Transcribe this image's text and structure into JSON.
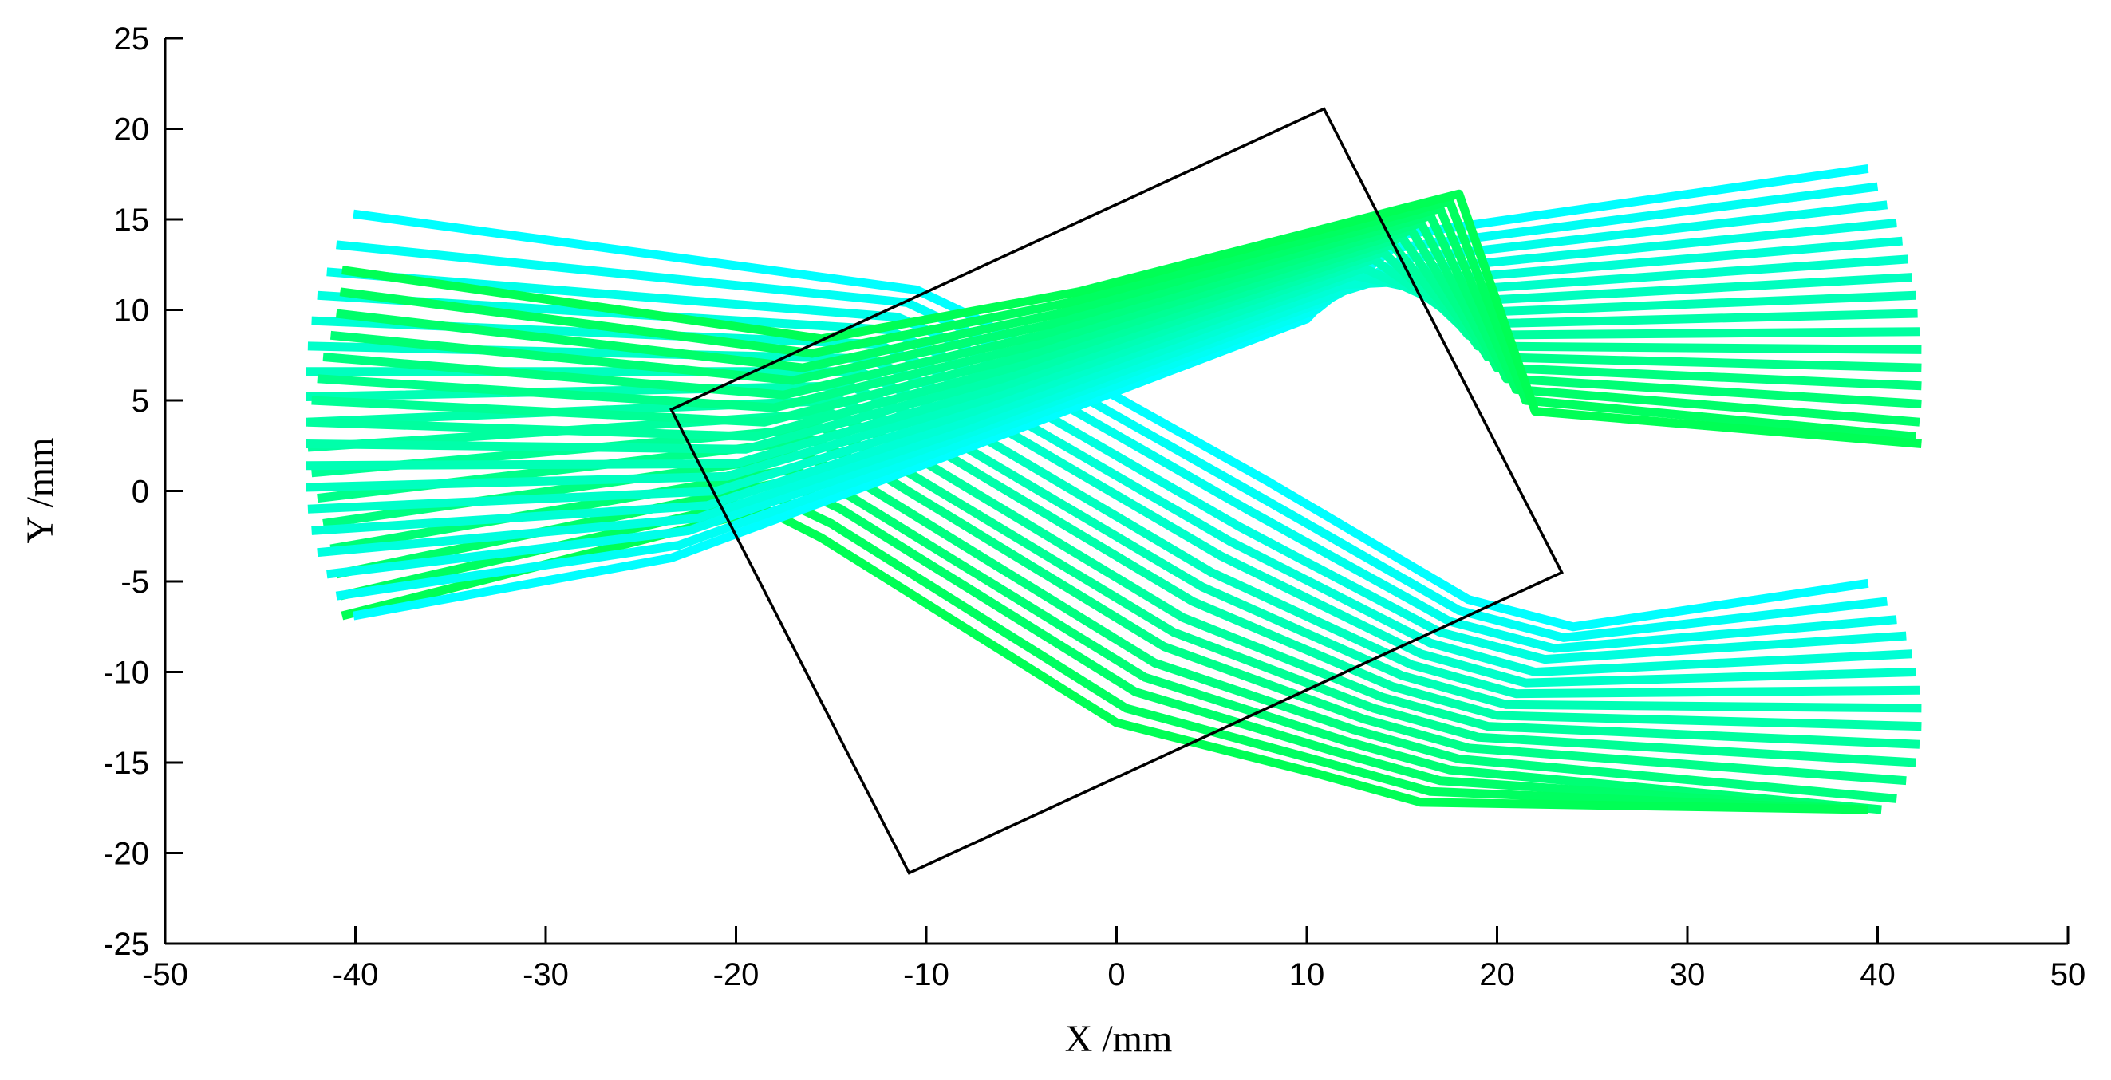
{
  "chart_data": {
    "type": "line",
    "title": "",
    "xlabel": "X /mm",
    "ylabel": "Y /mm",
    "xlim": [
      -50,
      50
    ],
    "ylim": [
      -25,
      25
    ],
    "xticks": [
      -50,
      -40,
      -30,
      -20,
      -10,
      0,
      10,
      20,
      30,
      40,
      50
    ],
    "yticks": [
      -25,
      -20,
      -15,
      -10,
      -5,
      0,
      5,
      10,
      15,
      20,
      25
    ],
    "grid": false,
    "legend": "none",
    "colors": {
      "cyan": "#00ffff",
      "green": "#00ff55",
      "frame": "#000000"
    },
    "aperture": {
      "name": "rotated square",
      "vertices": [
        [
          -23.4,
          4.5
        ],
        [
          10.9,
          21.1
        ],
        [
          23.4,
          -4.5
        ],
        [
          -10.9,
          -21.1
        ]
      ]
    },
    "series": [
      {
        "color_start": "#00ffff",
        "color_end": "#00ff55",
        "rays": [
          {
            "x": [
              -40.1,
              -10.5,
              -7.5,
              8.0,
              18.5,
              24.0,
              39.5
            ],
            "y": [
              15.3,
              11.1,
              9.6,
              0.5,
              -6.0,
              -7.5,
              -5.1
            ]
          },
          {
            "x": [
              -41.0,
              -11.0,
              -8.0,
              7.5,
              18.0,
              23.5,
              40.5
            ],
            "y": [
              13.6,
              10.4,
              8.9,
              -0.3,
              -6.6,
              -8.1,
              -6.1
            ]
          },
          {
            "x": [
              -41.5,
              -11.5,
              -8.5,
              7.0,
              17.5,
              23.0,
              41.0
            ],
            "y": [
              12.1,
              9.6,
              8.2,
              -1.1,
              -7.2,
              -8.7,
              -7.1
            ]
          },
          {
            "x": [
              -42.0,
              -12.0,
              -9.0,
              6.5,
              17.0,
              22.5,
              41.5
            ],
            "y": [
              10.8,
              8.9,
              7.4,
              -2.0,
              -7.8,
              -9.3,
              -8.0
            ]
          },
          {
            "x": [
              -42.3,
              -12.5,
              -9.5,
              6.0,
              16.5,
              22.0,
              41.8
            ],
            "y": [
              9.4,
              8.1,
              6.6,
              -2.8,
              -8.4,
              -10.0,
              -9.0
            ]
          },
          {
            "x": [
              -42.5,
              -13.0,
              -10.0,
              5.5,
              16.0,
              21.5,
              42.0
            ],
            "y": [
              8.0,
              7.3,
              5.9,
              -3.6,
              -9.0,
              -10.6,
              -10.0
            ]
          },
          {
            "x": [
              -42.6,
              -13.5,
              -10.5,
              5.0,
              15.5,
              21.0,
              42.2
            ],
            "y": [
              6.6,
              6.6,
              5.1,
              -4.5,
              -9.6,
              -11.2,
              -11.0
            ]
          },
          {
            "x": [
              -42.6,
              -14.0,
              -11.0,
              4.5,
              15.0,
              20.5,
              42.3
            ],
            "y": [
              5.2,
              5.8,
              4.3,
              -5.3,
              -10.2,
              -11.8,
              -12.0
            ]
          },
          {
            "x": [
              -42.6,
              -14.5,
              -11.5,
              4.0,
              14.5,
              20.0,
              42.3
            ],
            "y": [
              3.8,
              5.0,
              3.6,
              -6.1,
              -10.8,
              -12.4,
              -13.0
            ]
          },
          {
            "x": [
              -42.5,
              -15.0,
              -12.0,
              3.5,
              14.0,
              19.5,
              42.2
            ],
            "y": [
              2.4,
              4.3,
              2.8,
              -7.0,
              -11.4,
              -13.0,
              -14.0
            ]
          },
          {
            "x": [
              -42.3,
              -15.5,
              -12.5,
              3.0,
              13.5,
              19.0,
              42.0
            ],
            "y": [
              1.0,
              3.5,
              2.0,
              -7.8,
              -12.0,
              -13.6,
              -15.0
            ]
          },
          {
            "x": [
              -42.0,
              -16.0,
              -13.0,
              2.5,
              13.0,
              18.5,
              41.5
            ],
            "y": [
              -0.4,
              2.8,
              1.3,
              -8.6,
              -12.6,
              -14.2,
              -16.0
            ]
          },
          {
            "x": [
              -41.7,
              -16.5,
              -13.5,
              2.0,
              12.5,
              18.0,
              41.0
            ],
            "y": [
              -1.8,
              2.0,
              0.5,
              -9.5,
              -13.2,
              -14.8,
              -17.0
            ]
          },
          {
            "x": [
              -41.3,
              -17.0,
              -14.0,
              1.5,
              12.0,
              17.5,
              40.2
            ],
            "y": [
              -3.2,
              1.2,
              -0.3,
              -10.3,
              -13.8,
              -15.4,
              -17.6
            ]
          },
          {
            "x": [
              -41.0,
              -17.5,
              -14.5,
              1.0,
              11.5,
              17.0,
              39.5
            ],
            "y": [
              -4.6,
              0.5,
              -1.0,
              -11.1,
              -14.4,
              -16.0,
              -17.6
            ]
          },
          {
            "x": [
              -40.8,
              -18.0,
              -15.0,
              0.5,
              11.0,
              16.5,
              39.5
            ],
            "y": [
              -5.8,
              -0.3,
              -1.8,
              -12.0,
              -15.0,
              -16.6,
              -17.6
            ]
          },
          {
            "x": [
              -40.7,
              -18.5,
              -15.5,
              0.0,
              10.5,
              16.0,
              39.5
            ],
            "y": [
              -6.9,
              -1.0,
              -2.6,
              -12.8,
              -15.6,
              -17.2,
              -17.6
            ]
          }
        ]
      },
      {
        "color_start": "#00ffff",
        "color_end": "#00ff55",
        "rays": [
          {
            "x": [
              -40.1,
              -23.4,
              -10.0,
              10.0,
              14.0,
              39.5
            ],
            "y": [
              -6.9,
              -3.7,
              1.5,
              9.5,
              14.0,
              17.8
            ]
          },
          {
            "x": [
              -41.0,
              -23.0,
              -9.5,
              10.5,
              14.5,
              40.0
            ],
            "y": [
              -5.8,
              -3.0,
              2.1,
              10.0,
              13.4,
              16.8
            ]
          },
          {
            "x": [
              -41.5,
              -22.5,
              -9.0,
              11.0,
              15.0,
              40.5
            ],
            "y": [
              -4.6,
              -2.2,
              2.7,
              10.5,
              12.8,
              15.8
            ]
          },
          {
            "x": [
              -42.0,
              -22.0,
              -8.5,
              11.5,
              15.5,
              41.0
            ],
            "y": [
              -3.4,
              -1.5,
              3.2,
              10.9,
              12.2,
              14.8
            ]
          },
          {
            "x": [
              -42.3,
              -21.5,
              -8.0,
              12.0,
              16.0,
              41.3
            ],
            "y": [
              -2.2,
              -0.8,
              3.8,
              11.4,
              11.6,
              13.8
            ]
          },
          {
            "x": [
              -42.5,
              -21.0,
              -7.5,
              12.5,
              16.5,
              41.6
            ],
            "y": [
              -1.0,
              0.0,
              4.4,
              11.9,
              11.0,
              12.8
            ]
          },
          {
            "x": [
              -42.6,
              -20.5,
              -7.0,
              13.0,
              17.0,
              41.8
            ],
            "y": [
              0.2,
              0.8,
              5.0,
              12.3,
              10.4,
              11.8
            ]
          },
          {
            "x": [
              -42.6,
              -20.0,
              -6.5,
              13.5,
              17.5,
              42.0
            ],
            "y": [
              1.4,
              1.5,
              5.6,
              12.8,
              9.8,
              10.8
            ]
          },
          {
            "x": [
              -42.6,
              -19.5,
              -6.0,
              14.0,
              18.0,
              42.1
            ],
            "y": [
              2.6,
              2.3,
              6.2,
              13.2,
              9.2,
              9.8
            ]
          },
          {
            "x": [
              -42.5,
              -19.0,
              -5.5,
              14.5,
              18.5,
              42.2
            ],
            "y": [
              3.8,
              3.0,
              6.8,
              13.6,
              8.6,
              8.8
            ]
          },
          {
            "x": [
              -42.3,
              -18.5,
              -5.0,
              15.0,
              19.0,
              42.3
            ],
            "y": [
              5.0,
              3.8,
              7.4,
              14.0,
              8.0,
              7.8
            ]
          },
          {
            "x": [
              -42.0,
              -18.0,
              -4.5,
              15.5,
              19.5,
              42.3
            ],
            "y": [
              6.2,
              4.6,
              8.0,
              14.4,
              7.4,
              6.8
            ]
          },
          {
            "x": [
              -41.7,
              -17.5,
              -4.0,
              16.0,
              20.0,
              42.3
            ],
            "y": [
              7.4,
              5.3,
              8.6,
              14.8,
              6.8,
              5.8
            ]
          },
          {
            "x": [
              -41.3,
              -17.0,
              -3.5,
              16.5,
              20.5,
              42.3
            ],
            "y": [
              8.6,
              6.1,
              9.2,
              15.2,
              6.2,
              4.8
            ]
          },
          {
            "x": [
              -41.0,
              -16.5,
              -3.0,
              17.0,
              21.0,
              42.2
            ],
            "y": [
              9.8,
              6.8,
              9.8,
              15.6,
              5.6,
              3.8
            ]
          },
          {
            "x": [
              -40.8,
              -16.0,
              -2.5,
              17.5,
              21.5,
              42.0
            ],
            "y": [
              11.0,
              7.6,
              10.4,
              16.0,
              5.0,
              3.0
            ]
          },
          {
            "x": [
              -40.7,
              -15.5,
              -2.0,
              18.0,
              22.0,
              42.3
            ],
            "y": [
              12.2,
              8.4,
              11.0,
              16.4,
              4.4,
              2.6
            ]
          }
        ]
      }
    ]
  }
}
